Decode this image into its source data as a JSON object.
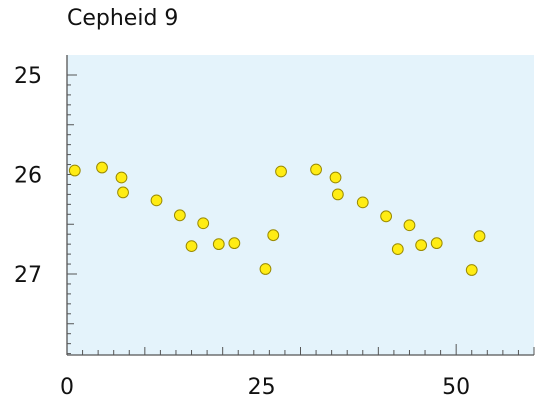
{
  "chart_data": {
    "type": "scatter",
    "title": "Cepheid 9",
    "xlabel": "",
    "ylabel": "",
    "xlim": [
      0,
      60
    ],
    "ylim": [
      25,
      27.8
    ],
    "y_inverted": true,
    "grid": false,
    "colors": {
      "plot_background": "#e4f3fb",
      "marker_fill": "#ffec14",
      "marker_edge": "#9a8a00",
      "axis": "#555555"
    },
    "x_ticks": [
      {
        "value": 0,
        "label": "0"
      },
      {
        "value": 25,
        "label": "25"
      },
      {
        "value": 50,
        "label": "50"
      }
    ],
    "y_ticks": [
      {
        "value": 25,
        "label": "25"
      },
      {
        "value": 26,
        "label": "26"
      },
      {
        "value": 27,
        "label": "27"
      }
    ],
    "points": [
      {
        "x": 1,
        "y": 25.96
      },
      {
        "x": 4.5,
        "y": 25.93
      },
      {
        "x": 7,
        "y": 26.03
      },
      {
        "x": 7.2,
        "y": 26.18
      },
      {
        "x": 11.5,
        "y": 26.26
      },
      {
        "x": 14.5,
        "y": 26.41
      },
      {
        "x": 16,
        "y": 26.72
      },
      {
        "x": 17.5,
        "y": 26.49
      },
      {
        "x": 19.5,
        "y": 26.7
      },
      {
        "x": 21.5,
        "y": 26.69
      },
      {
        "x": 25.5,
        "y": 26.95
      },
      {
        "x": 26.5,
        "y": 26.61
      },
      {
        "x": 27.5,
        "y": 25.97
      },
      {
        "x": 32,
        "y": 25.95
      },
      {
        "x": 34.5,
        "y": 26.03
      },
      {
        "x": 34.8,
        "y": 26.2
      },
      {
        "x": 38,
        "y": 26.28
      },
      {
        "x": 41,
        "y": 26.42
      },
      {
        "x": 42.5,
        "y": 26.75
      },
      {
        "x": 44,
        "y": 26.51
      },
      {
        "x": 45.5,
        "y": 26.71
      },
      {
        "x": 47.5,
        "y": 26.69
      },
      {
        "x": 52,
        "y": 26.96
      },
      {
        "x": 53,
        "y": 26.62
      }
    ]
  }
}
